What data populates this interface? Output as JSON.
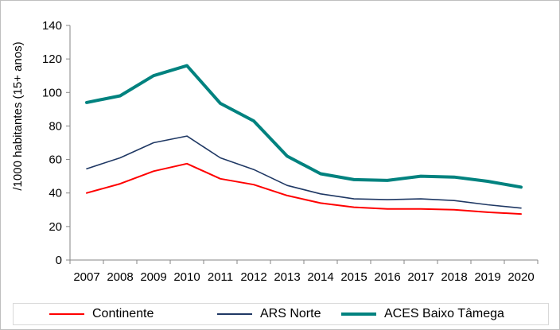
{
  "chart_data": {
    "type": "line",
    "title": "",
    "xlabel": "",
    "ylabel": "/1000 habitantes (15+ anos)",
    "ylim": [
      0,
      140
    ],
    "yticks": [
      0,
      20,
      40,
      60,
      80,
      100,
      120,
      140
    ],
    "x": [
      "2007",
      "2008",
      "2009",
      "2010",
      "2011",
      "2012",
      "2013",
      "2014",
      "2015",
      "2016",
      "2017",
      "2018",
      "2019",
      "2020"
    ],
    "series": [
      {
        "name": "Continente",
        "color": "#ff0000",
        "values": [
          40,
          45.5,
          53,
          57.5,
          48.5,
          45,
          38.5,
          34,
          31.5,
          30.5,
          30.5,
          30,
          28.5,
          27.5
        ]
      },
      {
        "name": "ARS Norte",
        "color": "#1f3864",
        "values": [
          54.5,
          61,
          70,
          74,
          61,
          54,
          44.5,
          39.5,
          36.5,
          36,
          36.5,
          35.5,
          33,
          31
        ]
      },
      {
        "name": "ACES Baixo Tâmega",
        "color": "#00827f",
        "values": [
          94,
          98,
          110,
          116,
          93.5,
          83,
          62,
          51.5,
          48,
          47.5,
          50,
          49.5,
          47,
          43.5
        ]
      }
    ],
    "grid": false,
    "legend_position": "bottom"
  }
}
